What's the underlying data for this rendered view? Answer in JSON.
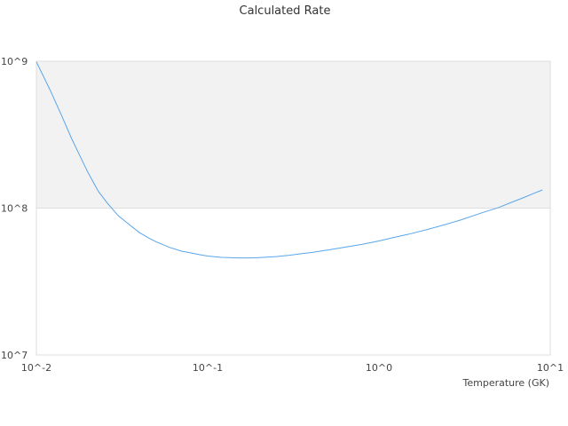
{
  "chart_data": {
    "type": "line",
    "title": "Calculated Rate",
    "xlabel": "Temperature (GK)",
    "ylabel": "",
    "x_scale": "log",
    "y_scale": "log",
    "xlim": [
      0.01,
      10
    ],
    "ylim": [
      10000000,
      1000000000
    ],
    "x_tick_values": [
      0.01,
      0.1,
      1,
      10
    ],
    "x_tick_labels": [
      "10^-2",
      "10^-1",
      "10^0",
      "10^1"
    ],
    "y_tick_values": [
      10000000,
      100000000,
      1000000000
    ],
    "y_tick_labels": [
      "10^7",
      "10^8",
      "10^9"
    ],
    "shaded_band": [
      100000000,
      1000000000
    ],
    "grid": false,
    "series": [
      {
        "color": "#5aa5ea",
        "x": [
          0.01,
          0.012,
          0.014,
          0.016,
          0.018,
          0.02,
          0.023,
          0.026,
          0.03,
          0.034,
          0.04,
          0.046,
          0.05,
          0.06,
          0.07,
          0.08,
          0.09,
          0.1,
          0.12,
          0.15,
          0.18,
          0.2,
          0.25,
          0.3,
          0.35,
          0.4,
          0.5,
          0.6,
          0.7,
          0.8,
          1,
          1.2,
          1.5,
          2,
          2.5,
          3,
          4,
          5,
          6,
          7,
          8,
          9
        ],
        "y": [
          990000000,
          640000000,
          430000000,
          300000000,
          225000000,
          175000000,
          130000000,
          108000000,
          89000000,
          79000000,
          68000000,
          62000000,
          59000000,
          54000000,
          51000000,
          49500000,
          48200000,
          47200000,
          46200000,
          45800000,
          45800000,
          46100000,
          46800000,
          47800000,
          48900000,
          49800000,
          51800000,
          53600000,
          55300000,
          56800000,
          59800000,
          62800000,
          66500000,
          72500000,
          78000000,
          83000000,
          93000000,
          101000000,
          110000000,
          118000000,
          126000000,
          133000000
        ]
      }
    ]
  }
}
